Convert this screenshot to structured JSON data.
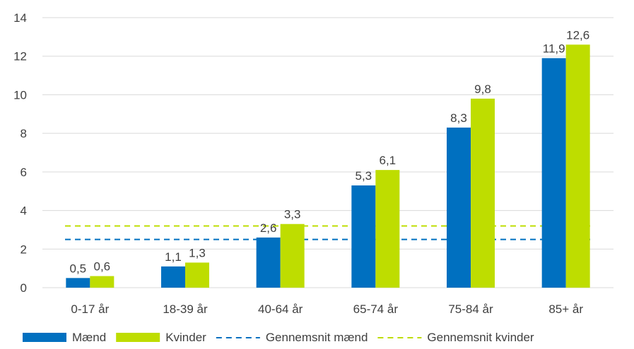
{
  "chart_data": {
    "type": "bar",
    "categories": [
      "0-17 år",
      "18-39 år",
      "40-64 år",
      "65-74 år",
      "75-84 år",
      "85+ år"
    ],
    "series": [
      {
        "name": "Mænd",
        "values": [
          0.5,
          1.1,
          2.6,
          5.3,
          8.3,
          11.9
        ],
        "labels": [
          "0,5",
          "1,1",
          "2,6",
          "5,3",
          "8,3",
          "11,9"
        ],
        "color": "#0070C0"
      },
      {
        "name": "Kvinder",
        "values": [
          0.6,
          1.3,
          3.3,
          6.1,
          9.8,
          12.6
        ],
        "labels": [
          "0,6",
          "1,3",
          "3,3",
          "6,1",
          "9,8",
          "12,6"
        ],
        "color": "#BEDD00"
      }
    ],
    "reference_lines": [
      {
        "name": "Gennemsnit mænd",
        "value": 2.5,
        "color": "#0070C0",
        "style": "dashed"
      },
      {
        "name": "Gennemsnit kvinder",
        "value": 3.2,
        "color": "#BEDD00",
        "style": "dashed"
      }
    ],
    "title": "",
    "xlabel": "",
    "ylabel": "",
    "ylim": [
      0,
      14
    ],
    "yticks": [
      0,
      2,
      4,
      6,
      8,
      10,
      12,
      14
    ],
    "grid": true,
    "legend": "bottom",
    "gridline_color": "#D9D9D9",
    "text_color": "#404040"
  }
}
